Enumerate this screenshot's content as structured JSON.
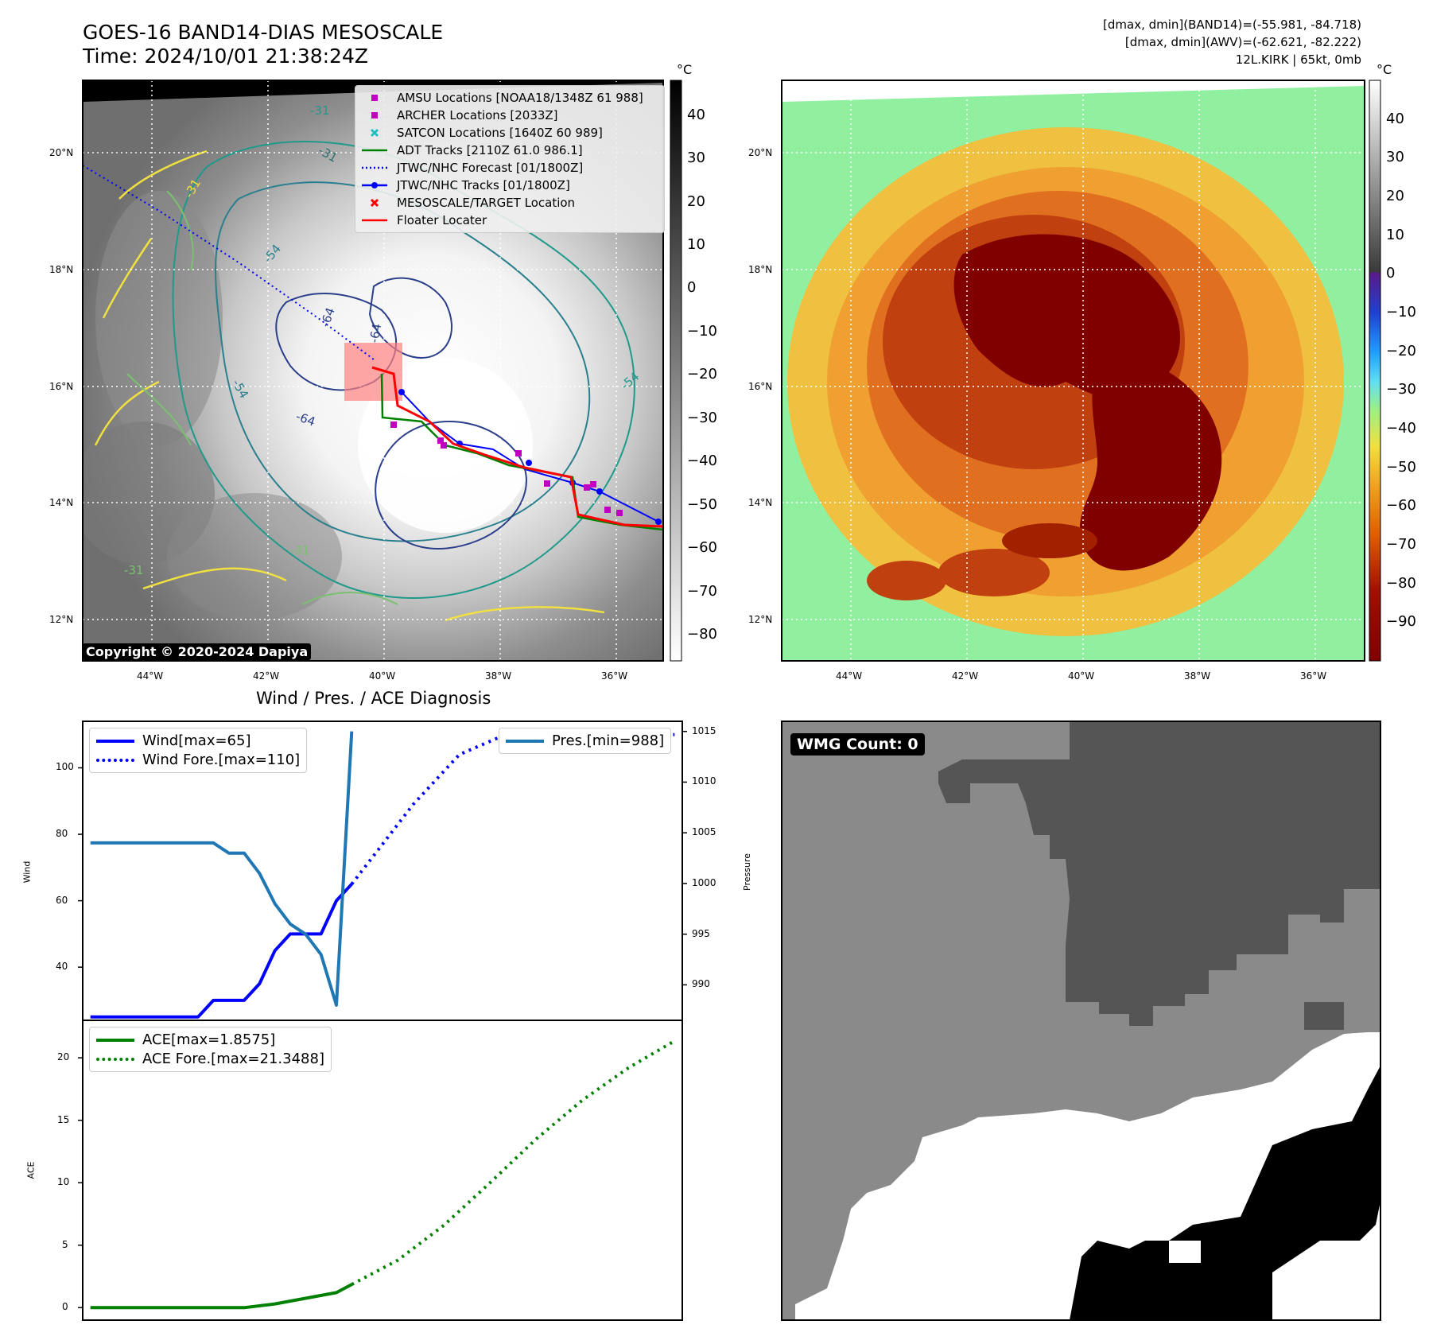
{
  "header": {
    "title_line1": "GOES-16 BAND14-DIAS MESOSCALE",
    "title_line2": "Time: 2024/10/01 21:38:24Z",
    "meta_band14": "[dmax, dmin](BAND14)=(-55.981, -84.718)",
    "meta_awv": "[dmax, dmin](AWV)=(-62.621, -82.222)",
    "meta_storm": "12L.KIRK | 65kt, 0mb"
  },
  "maps": {
    "lat_labels": [
      "20°N",
      "18°N",
      "16°N",
      "14°N",
      "12°N"
    ],
    "lon_labels": [
      "44°W",
      "42°W",
      "40°W",
      "38°W",
      "36°W"
    ],
    "contour_labels": [
      "-31",
      "-31",
      "-31",
      "-54",
      "-54",
      "-64",
      "-64",
      "-64",
      "-31",
      "-31",
      "-54"
    ],
    "copyright": "Copyright © 2020-2024 Dapiya",
    "legend": [
      {
        "label": "AMSU Locations [NOAA18/1348Z 61 988]",
        "color": "#c000c0",
        "marker": "square"
      },
      {
        "label": "ARCHER Locations [2033Z]",
        "color": "#c000c0",
        "marker": "square"
      },
      {
        "label": "SATCON Locations [1640Z 60 989]",
        "color": "#20c0c0",
        "marker": "x"
      },
      {
        "label": "ADT Tracks [2110Z 61.0 986.1]",
        "color": "#008000",
        "marker": "line"
      },
      {
        "label": "JTWC/NHC Forecast [01/1800Z]",
        "color": "#0000ff",
        "marker": "dotted"
      },
      {
        "label": "JTWC/NHC Tracks [01/1800Z]",
        "color": "#0000ff",
        "marker": "line-dot"
      },
      {
        "label": "MESOSCALE/TARGET Location",
        "color": "#ff0000",
        "marker": "x"
      },
      {
        "label": "Floater Locater",
        "color": "#ff0000",
        "marker": "line"
      }
    ]
  },
  "colorbars": {
    "unit": "°C",
    "gray_ticks": [
      "40",
      "30",
      "20",
      "10",
      "0",
      "−10",
      "−20",
      "−30",
      "−40",
      "−50",
      "−60",
      "−70",
      "−80"
    ],
    "color_ticks": [
      "40",
      "30",
      "20",
      "10",
      "0",
      "−10",
      "−20",
      "−30",
      "−40",
      "−50",
      "−60",
      "−70",
      "−80",
      "−90"
    ]
  },
  "wmg": {
    "label": "WMG Count: 0"
  },
  "chart_data": [
    {
      "type": "line",
      "title": "Wind / Pres. / ACE Diagnosis",
      "ylabel": "Wind",
      "ylabel_right": "Pressure",
      "ylim": [
        24,
        114
      ],
      "ylim_right": [
        986.5,
        1016
      ],
      "yticks": [
        "40",
        "60",
        "80",
        "100"
      ],
      "yticks_right": [
        "990",
        "995",
        "1000",
        "1005",
        "1010",
        "1015"
      ],
      "series": [
        {
          "name": "Wind[max=65]",
          "color": "#0000ff",
          "style": "solid",
          "x": [
            0,
            1,
            2,
            3,
            4,
            5,
            6,
            7,
            8,
            9,
            10,
            11,
            12,
            13,
            14,
            15,
            16,
            17
          ],
          "values": [
            25,
            25,
            25,
            25,
            25,
            25,
            25,
            25,
            30,
            30,
            30,
            35,
            45,
            50,
            50,
            50,
            60,
            65
          ]
        },
        {
          "name": "Wind Fore.[max=110]",
          "color": "#0000ff",
          "style": "dotted",
          "x": [
            17,
            18,
            19,
            20,
            21,
            22,
            23,
            24,
            25,
            26,
            27,
            28,
            29,
            30,
            31,
            32,
            33,
            34,
            35,
            36,
            37,
            38
          ],
          "values": [
            65,
            71,
            77,
            83,
            89,
            94,
            99,
            104,
            106,
            108,
            110,
            110,
            110,
            110,
            110,
            110,
            110,
            110,
            110,
            110,
            110,
            110
          ]
        },
        {
          "name": "Pres.[min=988]",
          "color": "#1f77b4",
          "style": "solid",
          "axis": "right",
          "x": [
            0,
            1,
            2,
            3,
            4,
            5,
            6,
            7,
            8,
            9,
            10,
            11,
            12,
            13,
            14,
            15,
            16,
            17
          ],
          "values": [
            1004,
            1004,
            1004,
            1004,
            1004,
            1004,
            1004,
            1004,
            1004,
            1003,
            1003,
            1001,
            998,
            996,
            995,
            993,
            988,
            1015
          ]
        }
      ]
    },
    {
      "type": "line",
      "ylabel": "ACE",
      "ylim": [
        -1,
        23
      ],
      "yticks": [
        "0",
        "5",
        "10",
        "15",
        "20"
      ],
      "series": [
        {
          "name": "ACE[max=1.8575]",
          "color": "#008000",
          "style": "solid",
          "x": [
            0,
            2,
            4,
            6,
            8,
            10,
            12,
            14,
            16,
            17
          ],
          "values": [
            0,
            0,
            0,
            0,
            0,
            0,
            0.3,
            0.75,
            1.2,
            1.86
          ]
        },
        {
          "name": "ACE Fore.[max=21.3488]",
          "color": "#008000",
          "style": "dotted",
          "x": [
            17,
            20,
            23,
            26,
            29,
            32,
            35,
            38
          ],
          "values": [
            1.86,
            3.8,
            6.6,
            10,
            13.5,
            16.6,
            19.2,
            21.35
          ]
        }
      ]
    }
  ]
}
